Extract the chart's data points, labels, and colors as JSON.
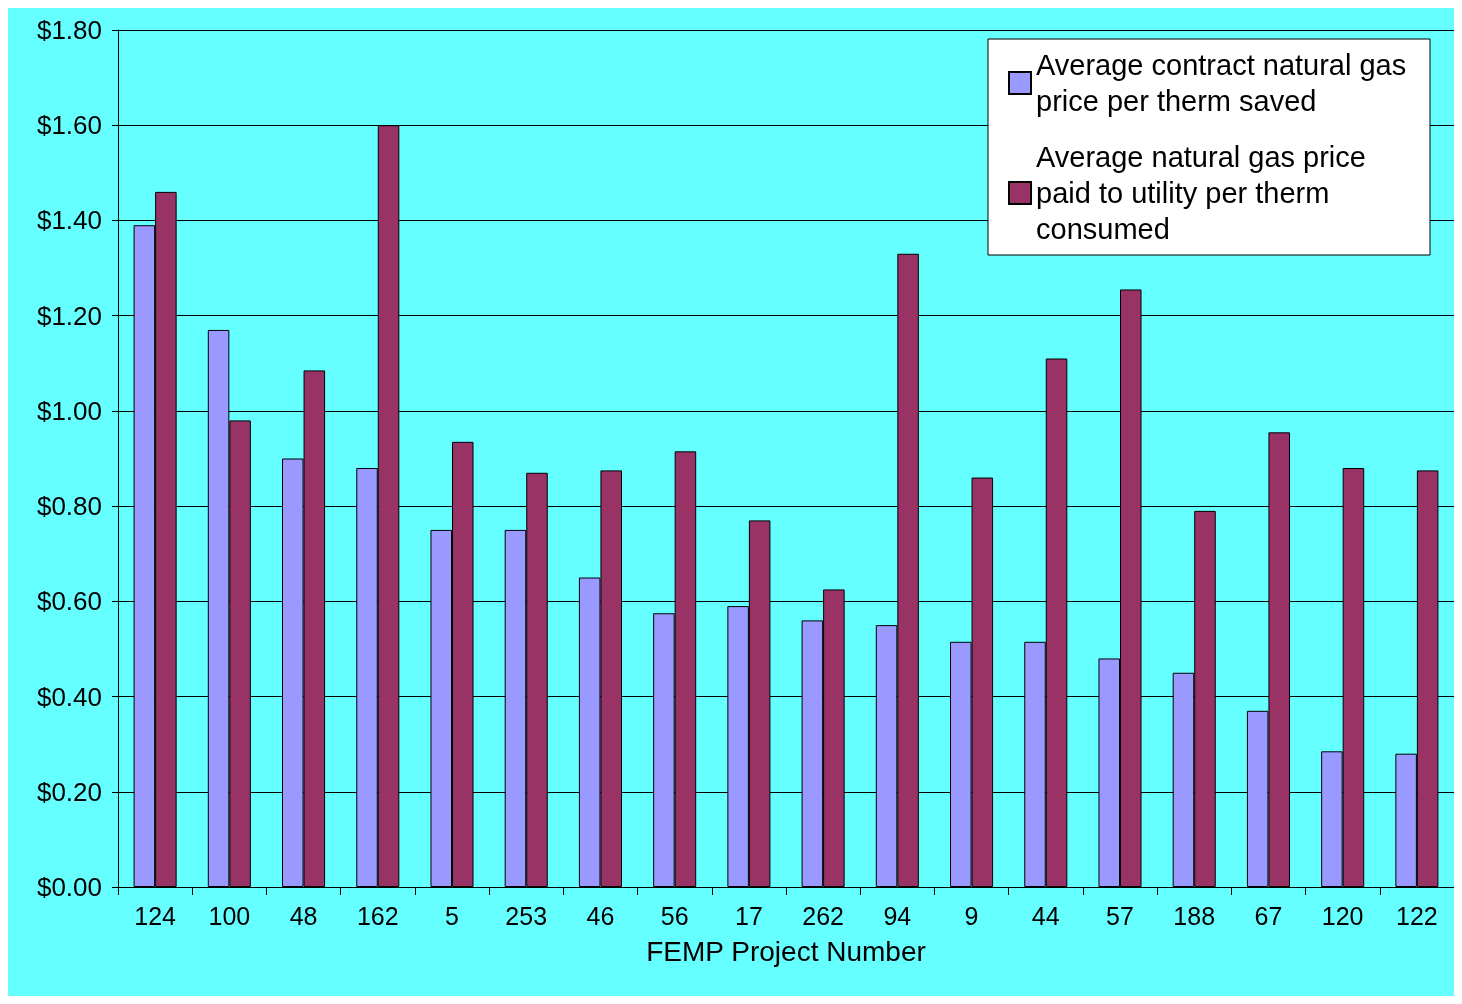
{
  "chart_data": {
    "type": "bar",
    "xlabel": "FEMP Project Number",
    "categories": [
      "124",
      "100",
      "48",
      "162",
      "5",
      "253",
      "46",
      "56",
      "17",
      "262",
      "94",
      "9",
      "44",
      "57",
      "188",
      "67",
      "120",
      "122"
    ],
    "series": [
      {
        "name": "Average contract natural gas price per therm saved",
        "color": "#9999ff",
        "values": [
          1.39,
          1.17,
          0.9,
          0.88,
          0.75,
          0.75,
          0.65,
          0.575,
          0.59,
          0.56,
          0.55,
          0.515,
          0.515,
          0.48,
          0.45,
          0.37,
          0.285,
          0.28
        ]
      },
      {
        "name": "Average natural gas price paid to utility per therm consumed",
        "color": "#993366",
        "values": [
          1.46,
          0.98,
          1.085,
          1.6,
          0.935,
          0.87,
          0.875,
          0.915,
          0.77,
          0.625,
          1.33,
          0.86,
          1.11,
          1.255,
          0.79,
          0.955,
          0.88,
          0.875
        ]
      }
    ],
    "ylim": [
      0,
      1.8
    ],
    "yticks": [
      {
        "value": 0,
        "label": "$0.00"
      },
      {
        "value": 0.2,
        "label": "$0.20"
      },
      {
        "value": 0.4,
        "label": "$0.40"
      },
      {
        "value": 0.6,
        "label": "$0.60"
      },
      {
        "value": 0.8,
        "label": "$0.80"
      },
      {
        "value": 1,
        "label": "$1.00"
      },
      {
        "value": 1.2,
        "label": "$1.20"
      },
      {
        "value": 1.4,
        "label": "$1.40"
      },
      {
        "value": 1.6,
        "label": "$1.60"
      },
      {
        "value": 1.8,
        "label": "$1.80"
      }
    ],
    "grid": "y",
    "legend": "top right"
  }
}
